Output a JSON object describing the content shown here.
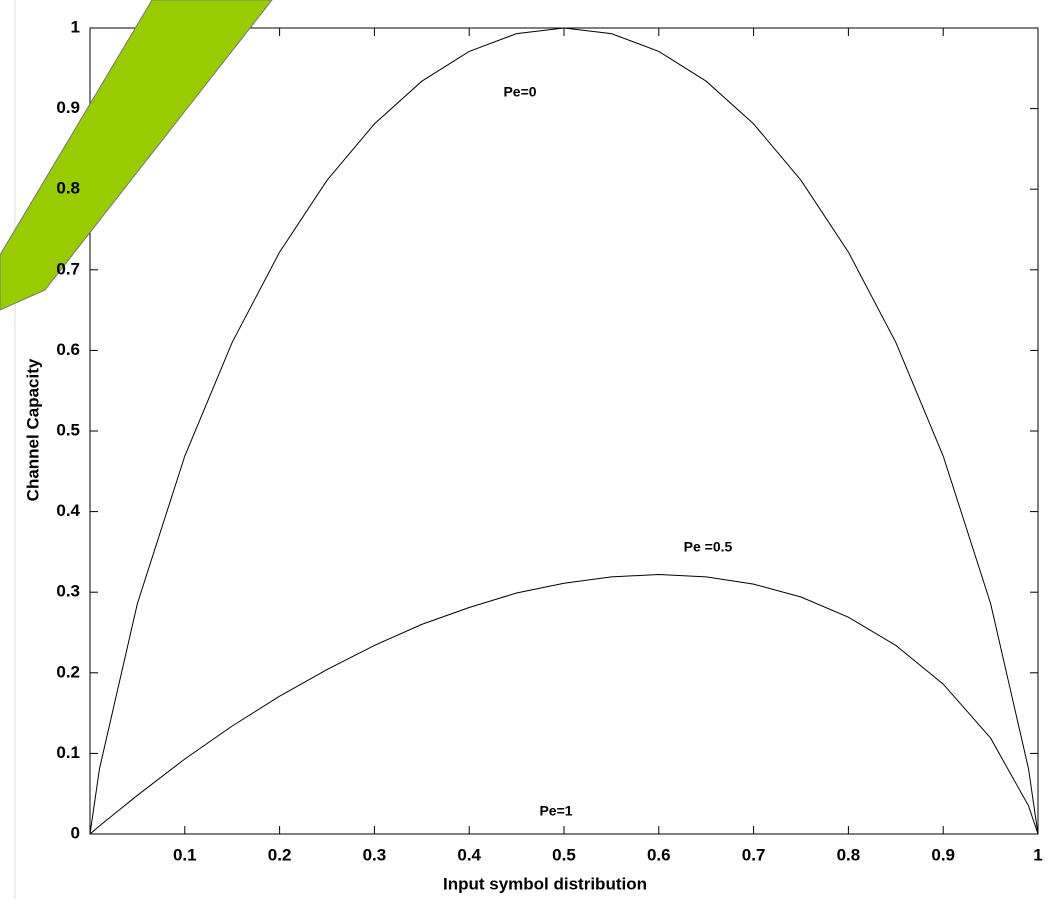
{
  "chart_data": {
    "type": "line",
    "x_label": "Input symbol distribution",
    "y_label": "Channel Capacity",
    "x": [
      0,
      0.01,
      0.05,
      0.1,
      0.15,
      0.2,
      0.25,
      0.3,
      0.35,
      0.4,
      0.45,
      0.5,
      0.55,
      0.6,
      0.65,
      0.7,
      0.75,
      0.8,
      0.85,
      0.9,
      0.95,
      0.99,
      1
    ],
    "series": [
      {
        "name": "Pe=0",
        "color": "#000000",
        "values": [
          0,
          0.081,
          0.286,
          0.469,
          0.61,
          0.722,
          0.811,
          0.881,
          0.934,
          0.971,
          0.993,
          1,
          0.993,
          0.971,
          0.934,
          0.881,
          0.811,
          0.722,
          0.61,
          0.469,
          0.286,
          0.081,
          0
        ]
      },
      {
        "name": "Pe =0.5",
        "color": "#000000",
        "values": [
          0,
          0.01,
          0.048,
          0.093,
          0.134,
          0.171,
          0.204,
          0.234,
          0.26,
          0.281,
          0.299,
          0.311,
          0.319,
          0.322,
          0.319,
          0.31,
          0.294,
          0.269,
          0.234,
          0.186,
          0.119,
          0.035,
          0
        ]
      },
      {
        "name": "Pe=1",
        "color": "#000000",
        "values": [
          0,
          0,
          0,
          0,
          0,
          0,
          0,
          0,
          0,
          0,
          0,
          0,
          0,
          0,
          0,
          0,
          0,
          0,
          0,
          0,
          0,
          0,
          0
        ]
      }
    ],
    "xlim": [
      0,
      1
    ],
    "ylim": [
      0,
      1
    ],
    "xticks": [
      0.1,
      0.2,
      0.3,
      0.4,
      0.5,
      0.6,
      0.7,
      0.8,
      0.9,
      1
    ],
    "yticks": [
      0,
      0.1,
      0.2,
      0.3,
      0.4,
      0.5,
      0.6,
      0.7,
      0.8,
      0.9,
      1
    ]
  }
}
